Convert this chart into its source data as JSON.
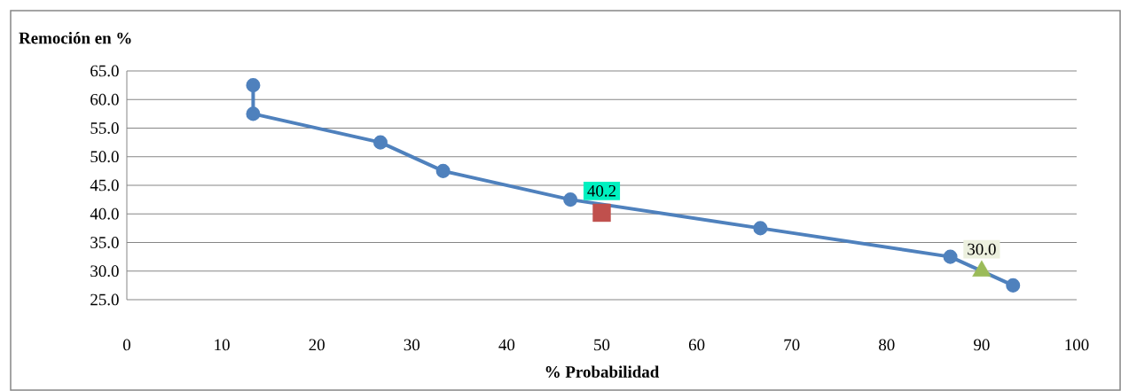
{
  "chart_data": {
    "type": "line",
    "xlabel": "% Probabilidad",
    "ylabel": "Remoción en %",
    "xlim": [
      0,
      100
    ],
    "xticks": [
      0,
      10,
      20,
      30,
      40,
      50,
      60,
      70,
      80,
      90,
      100
    ],
    "ylim": [
      25,
      65
    ],
    "yticks": [
      {
        "value": 25,
        "label": "25.0"
      },
      {
        "value": 30,
        "label": "30.0"
      },
      {
        "value": 35,
        "label": "35.0"
      },
      {
        "value": 40,
        "label": "40.0"
      },
      {
        "value": 45,
        "label": "45.0"
      },
      {
        "value": 50,
        "label": "50.0"
      },
      {
        "value": 55,
        "label": "55.0"
      },
      {
        "value": 60,
        "label": "60.0"
      },
      {
        "value": 65,
        "label": "65.0"
      }
    ],
    "grid": "y",
    "series": [
      {
        "color": "#4f81bd",
        "marker": "circle",
        "x": [
          13.3,
          13.3,
          26.7,
          33.3,
          46.7,
          66.7,
          86.7,
          93.3
        ],
        "values": [
          62.5,
          57.5,
          52.5,
          47.5,
          42.5,
          37.5,
          32.5,
          27.5
        ]
      },
      {
        "type": "scatter",
        "color": "#c0504d",
        "marker": "square",
        "x": [
          50
        ],
        "values": [
          40.2
        ],
        "value_labels": [
          "40.2"
        ]
      },
      {
        "type": "scatter",
        "color": "#9bbb59",
        "marker": "triangle",
        "x": [
          90
        ],
        "values": [
          30.0
        ],
        "value_labels": [
          "30.0"
        ]
      }
    ]
  }
}
